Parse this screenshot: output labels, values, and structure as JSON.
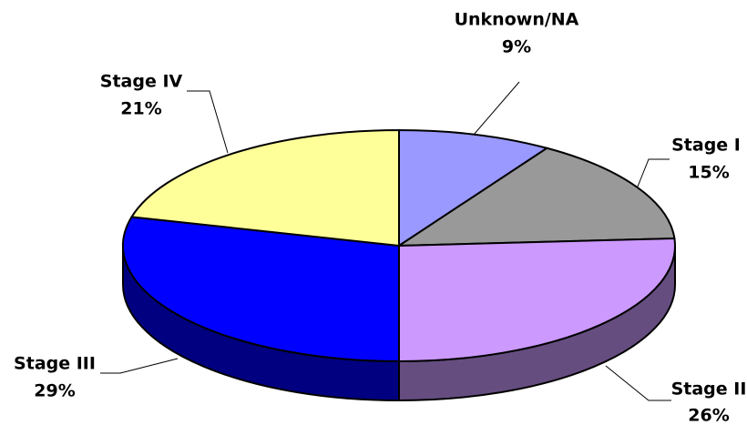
{
  "chart_data": {
    "type": "pie",
    "categories": [
      "Unknown/NA",
      "Stage I",
      "Stage II",
      "Stage III",
      "Stage IV"
    ],
    "values": [
      9,
      15,
      26,
      29,
      21
    ],
    "value_labels": [
      "9%",
      "15%",
      "26%",
      "29%",
      "21%"
    ],
    "colors": [
      "#9999ff",
      "#999999",
      "#cc99ff",
      "#0000ff",
      "#ffff99"
    ]
  }
}
